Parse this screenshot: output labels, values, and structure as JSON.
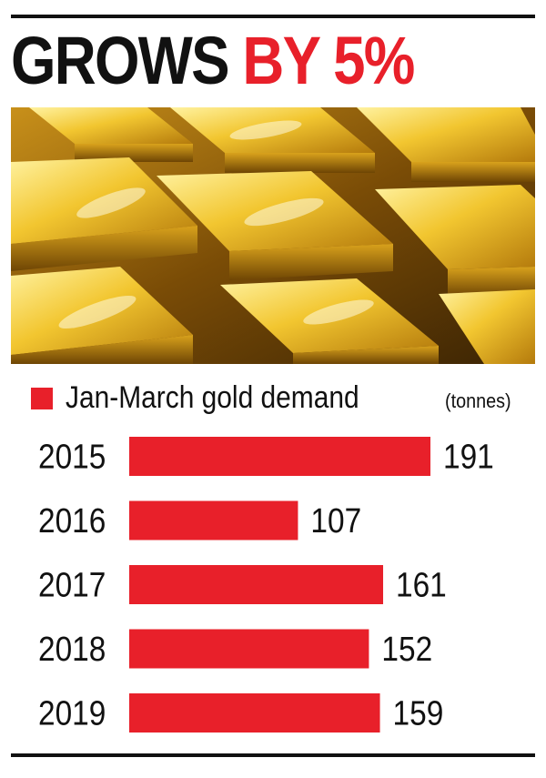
{
  "headline": {
    "part1": "GROWS",
    "part2": "BY 5%"
  },
  "colors": {
    "accent": "#e8202a",
    "text": "#111111",
    "gold_light": "#f7d34a",
    "gold_dark": "#8a5a06"
  },
  "chart_data": {
    "type": "bar",
    "orientation": "horizontal",
    "categories": [
      "2015",
      "2016",
      "2017",
      "2018",
      "2019"
    ],
    "series": [
      {
        "name": "Jan-March gold demand",
        "values": [
          191,
          107,
          161,
          152,
          159
        ]
      }
    ],
    "unit": "(tonnes)",
    "xlim": [
      0,
      191
    ],
    "grid": false,
    "legend_position": "top-left",
    "data_labels": true
  }
}
